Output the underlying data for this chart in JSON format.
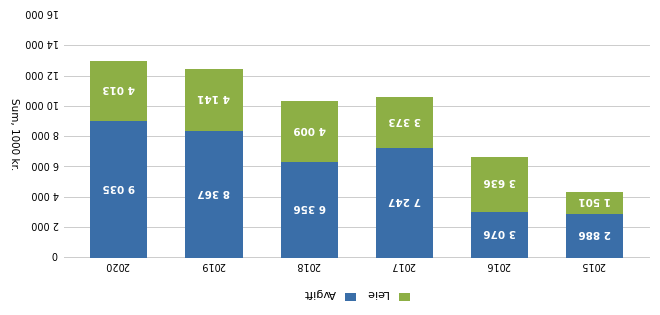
{
  "years": [
    "2015",
    "2016",
    "2017",
    "2018",
    "2019",
    "2020"
  ],
  "avgift": [
    -2886,
    -3076,
    -7247,
    -6356,
    -8367,
    -9035
  ],
  "leie": [
    -1501,
    -3636,
    -3373,
    -4009,
    -4141,
    -4013
  ],
  "avgift_labels": [
    "2 886",
    "3 076",
    "7 247",
    "6 356",
    "8 367",
    "9 035"
  ],
  "leie_labels": [
    "1 501",
    "3 636",
    "3 373",
    "4 009",
    "4 141",
    "4 013"
  ],
  "color_avgift": "#3A6EA8",
  "color_leie": "#8DAF45",
  "legend_avgift": "Avgift",
  "legend_leie": "Leie",
  "ylabel": "Sum, 1000 kr.",
  "ylim": [
    -16000,
    0
  ],
  "yticks": [
    0,
    -2000,
    -4000,
    -6000,
    -8000,
    -10000,
    -12000,
    -14000,
    -16000
  ],
  "ytick_labels": [
    "0",
    "2 000",
    "4 000",
    "6 000",
    "8 000",
    "10 000",
    "12 000",
    "14 000",
    "16 000"
  ],
  "background_color": "#FFFFFF",
  "grid_color": "#CCCCCC",
  "label_fontsize": 7.5,
  "tick_fontsize": 7,
  "legend_fontsize": 8
}
